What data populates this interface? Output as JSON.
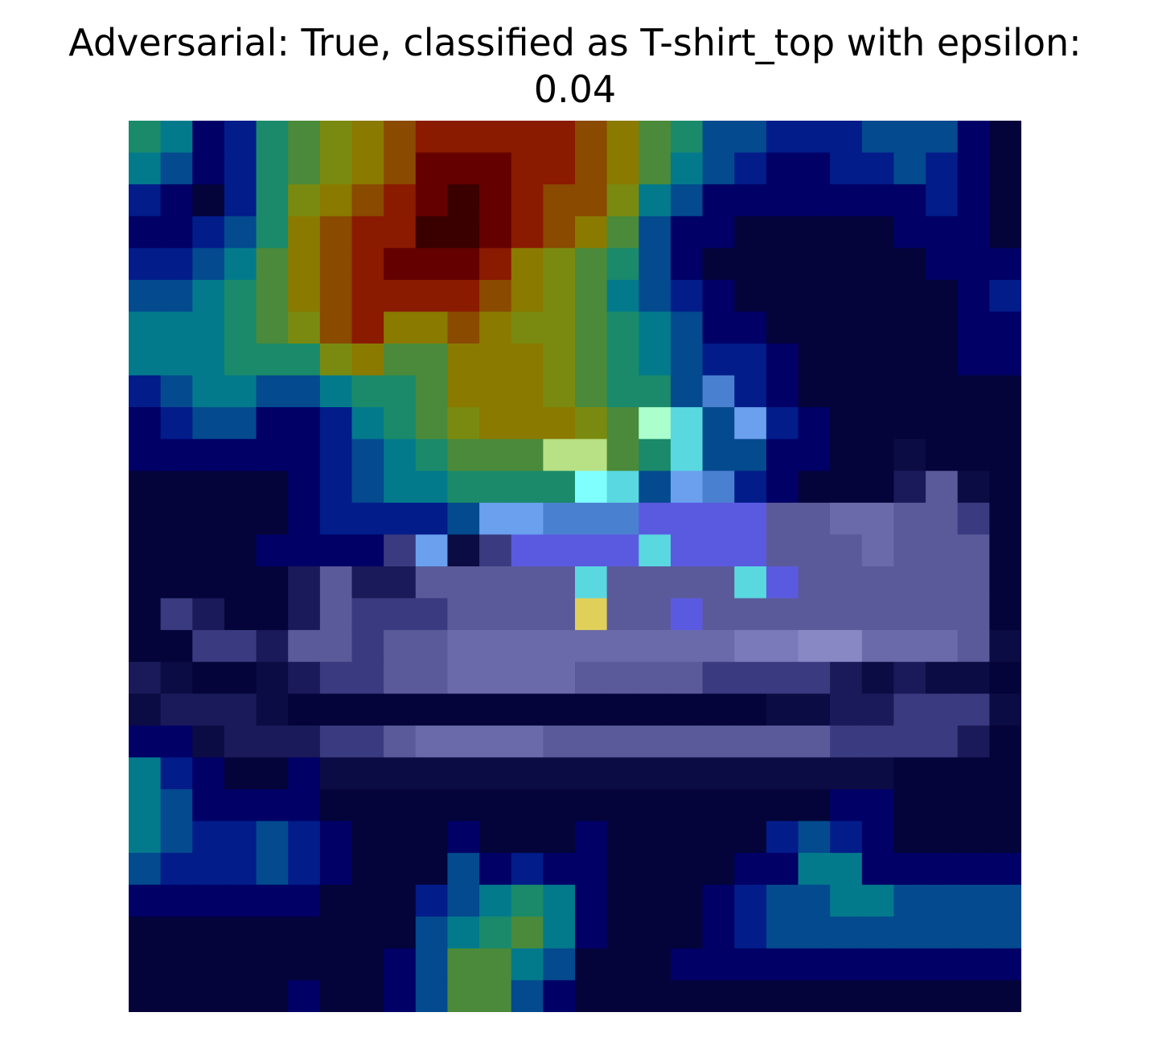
{
  "title_line1": "Adversarial: True, classified as T-shirt_top with epsilon:",
  "title_line2": "0.04",
  "image": {
    "description": "28x28 heatmap overlay (jet colormap blended over a grayscale fashion item)",
    "rows": 28,
    "cols": 28,
    "palette": {
      "A": "#04043a",
      "B": "#000066",
      "C": "#021c8a",
      "D": "#034a8e",
      "E": "#037a8c",
      "F": "#1a8a6a",
      "G": "#4a8a3a",
      "H": "#7a8a10",
      "I": "#8a7a00",
      "J": "#8a4a00",
      "K": "#8a1a00",
      "L": "#650000",
      "M": "#3a0000",
      "N": "#1a1a5a",
      "O": "#3a3a80",
      "P": "#5a5a9a",
      "Q": "#6a6aaa",
      "R": "#7a7abb",
      "S": "#8888c4",
      "T": "#5a5ae0",
      "U": "#6aa0ee",
      "V": "#4a80d0",
      "W": "#5ad8e0",
      "X": "#80ffff",
      "Y": "#aaffcc",
      "Z": "#b8e084",
      "a": "#e0d05a",
      "b": "#0c0c44"
    },
    "grid": [
      "FEBCFGHIJKKKKKJIGFDDCCCDDDBA",
      "EDBCFGHIJLLLKKJIGEDCBBCCDCBA",
      "CBACFHIJKLMLKJJHEDBBBBBBBCBA",
      "BBCDFIJKKMMLKJIGDBBAAAAABBBA",
      "CCDEGIJKLLLKIHGFDBAAAAAAABBB",
      "DDEFGIJKKKKJIHGEDCBAAAAAAABC",
      "EEEFGHJKIIJIHHGFEDBBAAAAAABB",
      "EEEFFFHIGGIIIHGFEDCCBAAAAABB",
      "CDEEDDEFFGIIIHGFFDVCBAAAAAAA",
      "BCDDBBCEFGHIIIHGYWDUCBAAAAAA",
      "BBBBBBCDEFGGGZZGFWDDBBAAbAAA",
      "AAAAABCDEEFFFFXWDUVCBAAANPbA",
      "AAAAABCCCCDUUVVVTTTTPPQQPPOA",
      "AAAABBBBOUbOTTTTWTTTPPPQPPPA",
      "AAAAANPNNPPPPPWPPPPWTPPPPPPA",
      "AONAANPOOOPPPPaPPTPPPPPPPPPA",
      "AAOONPPOPPQQQQQQQQQRRSSQQQPb",
      "NbAAbNOOPPQQQQPPPPOOOONbNbbA",
      "bNNNbAAAAAAAAAAAAAAAbbNNOOOb",
      "BBbNNNOOPQQQQPPPPPPPPPOOOONA",
      "ECBAABbbbbbbbbbbbbbbbbbbAAAA",
      "EDBBBBAAAAAAAAAAAAAAAABBAAAA",
      "EDCCDCBAAABAAABAAAAACDCBAAAA",
      "DCCCDCBAAADBCBBAAAABBEEBBBBB",
      "BBBBBBAAACDEFEBAAABCDDEEDDDD",
      "AAAAAAAAADEFGEBAAABCDDDDDDDD",
      "AAAAAAAABDGGEDAAABBBBBBBBBBB",
      "AAAAABAABDGGDBAAAAAAAAAAAAAA"
    ]
  }
}
